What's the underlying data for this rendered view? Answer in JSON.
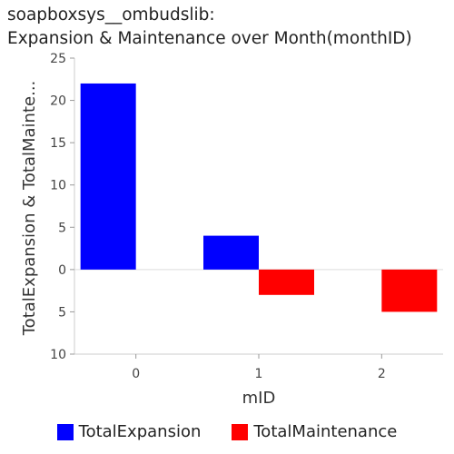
{
  "chart_data": {
    "type": "bar",
    "title_line1": "soapboxsys__ombudslib:",
    "title_line2": "Expansion & Maintenance over Month(monthID)",
    "xlabel": "mID",
    "ylabel": "TotalExpansion & TotalMainte...",
    "categories": [
      "0",
      "1",
      "2"
    ],
    "ylim": [
      -10,
      25
    ],
    "y_ticks": [
      25,
      20,
      15,
      10,
      5,
      0,
      -5,
      -10
    ],
    "y_tick_labels": [
      "25",
      "20",
      "15",
      "10",
      "5",
      "0",
      "5",
      "10"
    ],
    "series": [
      {
        "name": "TotalExpansion",
        "color": "#0000ff",
        "values": [
          22,
          4,
          0
        ]
      },
      {
        "name": "TotalMaintenance",
        "color": "#ff0000",
        "values": [
          0,
          -3,
          -5
        ]
      }
    ],
    "grid": false,
    "legend": "bottom"
  }
}
